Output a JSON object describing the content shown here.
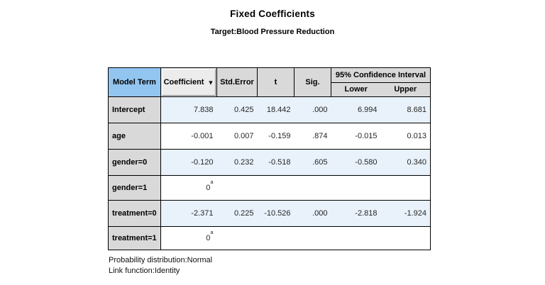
{
  "header": {
    "title": "Fixed Coefficients",
    "subtitle": "Target:Blood Pressure Reduction"
  },
  "table": {
    "columns": {
      "model_term": "Model Term",
      "coefficient": "Coefficient",
      "sort_icon": "▼",
      "std_error": "Std.Error",
      "t": "t",
      "sig": "Sig.",
      "ci_spanner": "95% Confidence Interval",
      "lower": "Lower",
      "upper": "Upper"
    },
    "rows": [
      {
        "term": "Intercept",
        "coefficient": "7.838",
        "std_error": "0.425",
        "t": "18.442",
        "sig": ".000",
        "lower": "6.994",
        "upper": "8.681",
        "sig_highlight": true
      },
      {
        "term": "age",
        "coefficient": "-0.001",
        "std_error": "0.007",
        "t": "-0.159",
        "sig": ".874",
        "lower": "-0.015",
        "upper": "0.013",
        "sig_highlight": false
      },
      {
        "term": "gender=0",
        "coefficient": "-0.120",
        "std_error": "0.232",
        "t": "-0.518",
        "sig": ".605",
        "lower": "-0.580",
        "upper": "0.340",
        "sig_highlight": false
      },
      {
        "term": "gender=1",
        "coefficient": "0",
        "sup": "a",
        "std_error": "",
        "t": "",
        "sig": "",
        "lower": "",
        "upper": "",
        "sig_highlight": false
      },
      {
        "term": "treatment=0",
        "coefficient": "-2.371",
        "std_error": "0.225",
        "t": "-10.526",
        "sig": ".000",
        "lower": "-2.818",
        "upper": "-1.924",
        "sig_highlight": true
      },
      {
        "term": "treatment=1",
        "coefficient": "0",
        "sup": "a",
        "std_error": "",
        "t": "",
        "sig": "",
        "lower": "",
        "upper": "",
        "sig_highlight": false
      }
    ]
  },
  "footer": {
    "line1": "Probability distribution:Normal",
    "line2": "Link function:Identity"
  },
  "colors": {
    "model_term_header_bg": "#92c5f0",
    "header_bg": "#d9d9d9",
    "coefficient_button_bg": "#ececec",
    "row_label_bg": "#d9d9d9",
    "alt_row_bg": "#e9f2fb",
    "sig_highlight_bg": "#f0b41e",
    "border": "#000000"
  }
}
